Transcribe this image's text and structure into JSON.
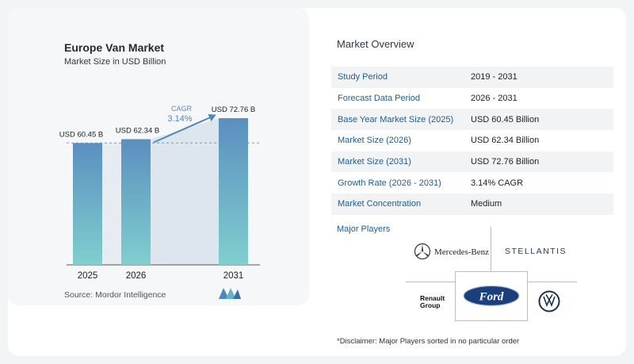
{
  "chart": {
    "title": "Europe Van Market",
    "subtitle": "Market Size in USD Billion",
    "source": "Source:  Mordor Intelligence",
    "cagr_label": "CAGR",
    "cagr_value": "3.14%"
  },
  "chart_data": {
    "type": "bar",
    "categories": [
      "2025",
      "2026",
      "2031"
    ],
    "values": [
      60.45,
      62.34,
      72.76
    ],
    "data_labels": [
      "USD 60.45 B",
      "USD 62.34 B",
      "USD 72.76 B"
    ],
    "title": "Europe Van Market",
    "subtitle": "Market Size in USD Billion",
    "annotation": "CAGR 3.14%",
    "colors": {
      "bar_top": "#5b8fbf",
      "bar_bottom": "#7fcfcf",
      "shade": "#dde6ee"
    }
  },
  "overview": {
    "title": "Market Overview",
    "rows": [
      {
        "key": "Study Period",
        "value": "2019 - 2031"
      },
      {
        "key": "Forecast Data Period",
        "value": "2026 - 2031"
      },
      {
        "key": "Base Year Market Size (2025)",
        "value": "USD 60.45 Billion"
      },
      {
        "key": "Market Size (2026)",
        "value": "USD 62.34 Billion"
      },
      {
        "key": "Market Size (2031)",
        "value": "USD 72.76 Billion"
      },
      {
        "key": "Growth Rate (2026 - 2031)",
        "value": "3.14% CAGR"
      },
      {
        "key": "Market Concentration",
        "value": "Medium"
      }
    ]
  },
  "players": {
    "title": "Major Players",
    "mercedes": "Mercedes-Benz",
    "stellantis": "STELLANTIS",
    "renault_line1": "Renault",
    "renault_line2": "Group",
    "ford": "Ford",
    "vw": "VW"
  },
  "disclaimer": "*Disclaimer: Major Players sorted in no particular order"
}
